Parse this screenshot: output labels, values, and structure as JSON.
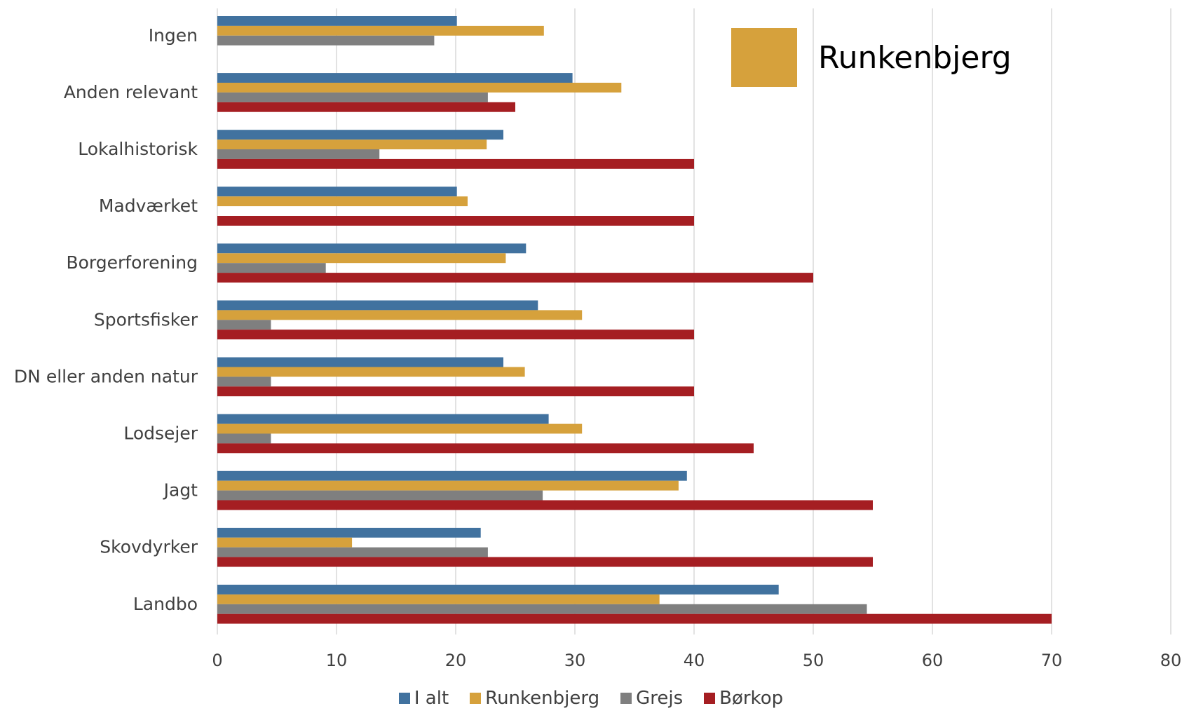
{
  "chart_data": {
    "type": "bar",
    "orientation": "horizontal",
    "categories": [
      "Ingen",
      "Anden relevant",
      "Lokalhistorisk",
      "Madværket",
      "Borgerforening",
      "Sportsfisker",
      "DN eller anden natur",
      "Lodsejer",
      "Jagt",
      "Skovdyrker",
      "Landbo"
    ],
    "series": [
      {
        "name": "I alt",
        "color": "#41729F",
        "values": [
          20.1,
          29.8,
          24.0,
          20.1,
          25.9,
          26.9,
          24.0,
          27.8,
          39.4,
          22.1,
          47.1
        ]
      },
      {
        "name": "Runkenbjerg",
        "color": "#D6A13C",
        "values": [
          27.4,
          33.9,
          22.6,
          21.0,
          24.2,
          30.6,
          25.8,
          30.6,
          38.7,
          11.3,
          37.1
        ]
      },
      {
        "name": "Grejs",
        "color": "#7F7F7F",
        "values": [
          18.2,
          22.7,
          13.6,
          null,
          9.1,
          4.5,
          4.5,
          4.5,
          27.3,
          22.7,
          54.5
        ]
      },
      {
        "name": "Børkop",
        "color": "#A51E22",
        "values": [
          null,
          25.0,
          40.0,
          40.0,
          50.0,
          40.0,
          40.0,
          45.0,
          55.0,
          55.0,
          70.0
        ]
      }
    ],
    "xlim": [
      0,
      80
    ],
    "xticks": [
      0,
      10,
      20,
      30,
      40,
      50,
      60,
      70,
      80
    ],
    "grid": "vertical",
    "legend": "bottom",
    "highlight": {
      "label": "Runkenbjerg",
      "color": "#D6A13C"
    }
  }
}
